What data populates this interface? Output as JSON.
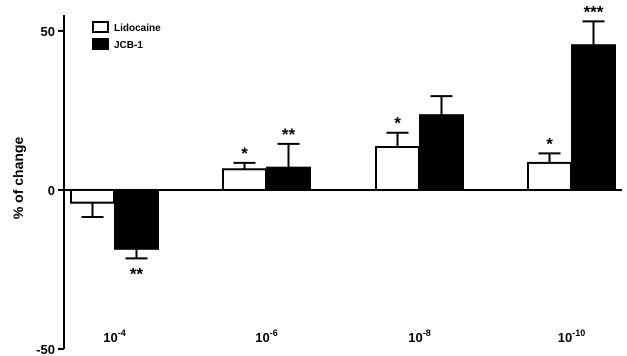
{
  "chart_data": {
    "type": "bar",
    "ylabel": "% of change",
    "ylim": [
      -50,
      55
    ],
    "yticks": [
      -50,
      0,
      50
    ],
    "categories": [
      {
        "base": "10",
        "exp": "-4"
      },
      {
        "base": "10",
        "exp": "-6"
      },
      {
        "base": "10",
        "exp": "-8"
      },
      {
        "base": "10",
        "exp": "-10"
      }
    ],
    "series": [
      {
        "name": "Lidocaine",
        "fill": "#ffffff",
        "values": [
          -4,
          6.5,
          13.5,
          8.5
        ],
        "errors": [
          4.5,
          2,
          4.5,
          3
        ],
        "stars": [
          "",
          "*",
          "*",
          "*"
        ]
      },
      {
        "name": "JCB-1",
        "fill": "#000000",
        "values": [
          -18.5,
          7,
          23.5,
          45.5
        ],
        "errors": [
          3,
          7.5,
          6,
          7.5
        ],
        "stars": [
          "**",
          "**",
          "",
          "***"
        ]
      }
    ],
    "legend": "top-left",
    "grid": false
  }
}
